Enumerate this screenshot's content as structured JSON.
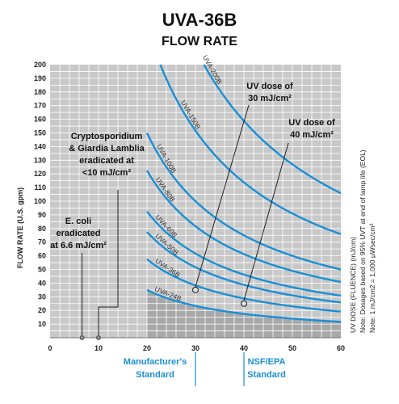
{
  "chart_data": {
    "type": "line",
    "title": "UVA-36B",
    "subtitle": "FLOW RATE",
    "ylabel": "FLOW RATE (U.S. gpm)",
    "xlabel": "",
    "xlim": [
      0,
      60
    ],
    "ylim": [
      0,
      200
    ],
    "x_ticks": [
      0,
      10,
      20,
      30,
      40,
      50,
      60
    ],
    "y_ticks": [
      10,
      20,
      30,
      40,
      50,
      60,
      70,
      80,
      90,
      100,
      110,
      120,
      130,
      140,
      150,
      160,
      170,
      180,
      190,
      200
    ],
    "grid": true,
    "series": [
      {
        "name": "UVA-200B",
        "k": 6350
      },
      {
        "name": "UVA-150B",
        "k": 4550
      },
      {
        "name": "UVA-100B",
        "k": 3000
      },
      {
        "name": "UVA-80B",
        "k": 2450
      },
      {
        "name": "UVA-60B",
        "k": 1850
      },
      {
        "name": "UVA-50B",
        "k": 1550
      },
      {
        "name": "UVA-36B",
        "k": 1150
      },
      {
        "name": "UVA-24B",
        "k": 700
      }
    ],
    "dose_points": [
      {
        "x": 30,
        "y": 35,
        "label": "UV dose of 30 mJ/cm²"
      },
      {
        "x": 40,
        "y": 25,
        "label": "UV dose of 40 mJ/cm²"
      },
      {
        "x": 6.6,
        "y": 0,
        "label": "E. coli eradicated at 6.6 mJ/cm²"
      },
      {
        "x": 10,
        "y": 0,
        "label": "Cryptosporidium & Giardia Lamblia eradicated at <10 mJ/cm²"
      }
    ],
    "annotations": {
      "uv30": [
        "UV dose of",
        "30 mJ/cm²"
      ],
      "uv40": [
        "UV dose of",
        "40 mJ/cm²"
      ],
      "crypto": [
        "Cryptosporidium",
        "& Giardia Lamblia",
        "eradicated at",
        "<10 mJ/cm²"
      ],
      "ecoli": [
        "E. coli",
        "eradicated",
        "at 6.6 mJ/cm²"
      ]
    },
    "standards": {
      "manufacturer": [
        "Manufacturer's",
        "Standard"
      ],
      "nsf": [
        "NSF/EPA",
        "Standard"
      ]
    },
    "side_notes": [
      "UV DOSE (FLUENCE) (mJ/cm)",
      "Note: Dosages based on 95% UVT at end of lamp life (EOL)",
      "Note: 1 mJ/cm2 = 1,000 µWsec/cm²"
    ],
    "colors": {
      "curve": "#1a8fd6",
      "plot_bg": "#c8c8c8",
      "shaded": "#a8a8a8",
      "grid": "#ffffff",
      "standard_text": "#1a8fd6"
    }
  }
}
